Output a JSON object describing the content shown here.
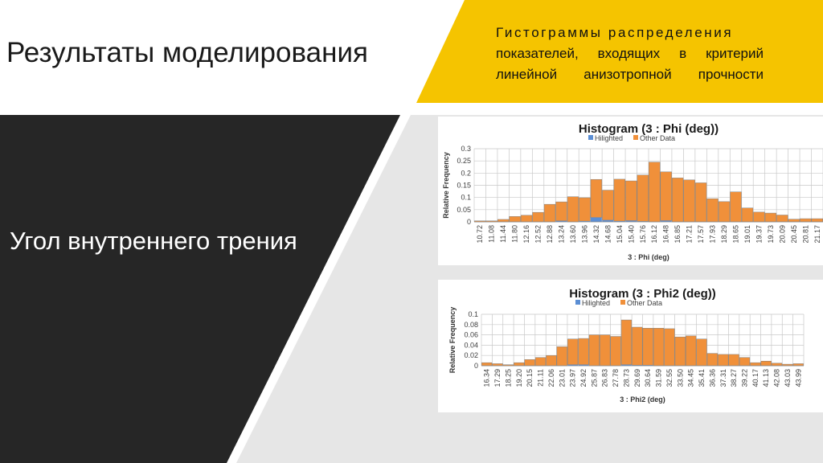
{
  "slide": {
    "title": "Результаты моделирования",
    "subtitle": "Угол внутреннего трения",
    "note_lines": [
      "Гистограммы распределения",
      "показателей, входящих в критерий",
      "линейной анизотропной прочности"
    ],
    "colors": {
      "accent_yellow": "#F5C400",
      "dark_panel": "#262626",
      "chart_panel": "#E6E6E6",
      "other_data": "#F0903A",
      "hilighted": "#5B8ED4"
    }
  },
  "chart_data": [
    {
      "type": "bar",
      "title": "Histogram (3 : Phi (deg))",
      "xlabel": "3 : Phi (deg)",
      "ylabel": "Relative Frequency",
      "ylim": [
        0,
        0.3
      ],
      "yticks": [
        "0",
        "0.05",
        "0.1",
        "0.15",
        "0.2",
        "0.25",
        "0.3"
      ],
      "legend_position": "top",
      "grid": true,
      "categories": [
        "10.72",
        "11.08",
        "11.44",
        "11.80",
        "12.16",
        "12.52",
        "12.88",
        "13.24",
        "13.60",
        "13.96",
        "14.32",
        "14.68",
        "15.04",
        "15.40",
        "15.76",
        "16.12",
        "16.48",
        "16.85",
        "17.21",
        "17.57",
        "17.93",
        "18.29",
        "18.65",
        "19.01",
        "19.37",
        "19.73",
        "20.09",
        "20.45",
        "20.81",
        "21.17"
      ],
      "series": [
        {
          "name": "Hilighted",
          "values": [
            0,
            0,
            0,
            0,
            0,
            0,
            0,
            0.004,
            0,
            0.003,
            0.018,
            0.007,
            0.003,
            0.005,
            0.002,
            0,
            0.005,
            0,
            0,
            0,
            0,
            0,
            0,
            0,
            0,
            0,
            0,
            0,
            0,
            0
          ]
        },
        {
          "name": "Other Data",
          "values": [
            0.004,
            0.004,
            0.01,
            0.022,
            0.027,
            0.039,
            0.072,
            0.078,
            0.103,
            0.096,
            0.156,
            0.123,
            0.172,
            0.163,
            0.19,
            0.245,
            0.2,
            0.18,
            0.172,
            0.16,
            0.095,
            0.083,
            0.123,
            0.057,
            0.04,
            0.036,
            0.028,
            0.011,
            0.013,
            0.013
          ]
        }
      ]
    },
    {
      "type": "bar",
      "title": "Histogram (3 : Phi2 (deg))",
      "xlabel": "3 : Phi2 (deg)",
      "ylabel": "Relative Frequency",
      "ylim": [
        0,
        0.1
      ],
      "yticks": [
        "0",
        "0.02",
        "0.04",
        "0.06",
        "0.08",
        "0.1"
      ],
      "legend_position": "top",
      "grid": true,
      "categories": [
        "16.34",
        "17.29",
        "18.25",
        "19.20",
        "20.15",
        "21.11",
        "22.06",
        "23.01",
        "23.97",
        "24.92",
        "25.87",
        "26.83",
        "27.78",
        "28.73",
        "29.69",
        "30.64",
        "31.59",
        "32.55",
        "33.50",
        "34.45",
        "35.41",
        "36.36",
        "37.31",
        "38.27",
        "39.22",
        "40.17",
        "41.13",
        "42.08",
        "43.03",
        "43.99"
      ],
      "series": [
        {
          "name": "Hilighted",
          "values": [
            0,
            0,
            0,
            0,
            0,
            0,
            0,
            0,
            0.002,
            0.002,
            0,
            0,
            0,
            0.002,
            0.001,
            0.001,
            0,
            0,
            0,
            0,
            0,
            0,
            0,
            0,
            0,
            0,
            0,
            0,
            0,
            0
          ]
        },
        {
          "name": "Other Data",
          "values": [
            0.006,
            0.004,
            0.002,
            0.006,
            0.012,
            0.016,
            0.02,
            0.037,
            0.05,
            0.051,
            0.06,
            0.06,
            0.057,
            0.087,
            0.074,
            0.072,
            0.073,
            0.072,
            0.056,
            0.058,
            0.052,
            0.024,
            0.022,
            0.022,
            0.016,
            0.006,
            0.009,
            0.005,
            0.003,
            0.004
          ]
        }
      ]
    }
  ]
}
